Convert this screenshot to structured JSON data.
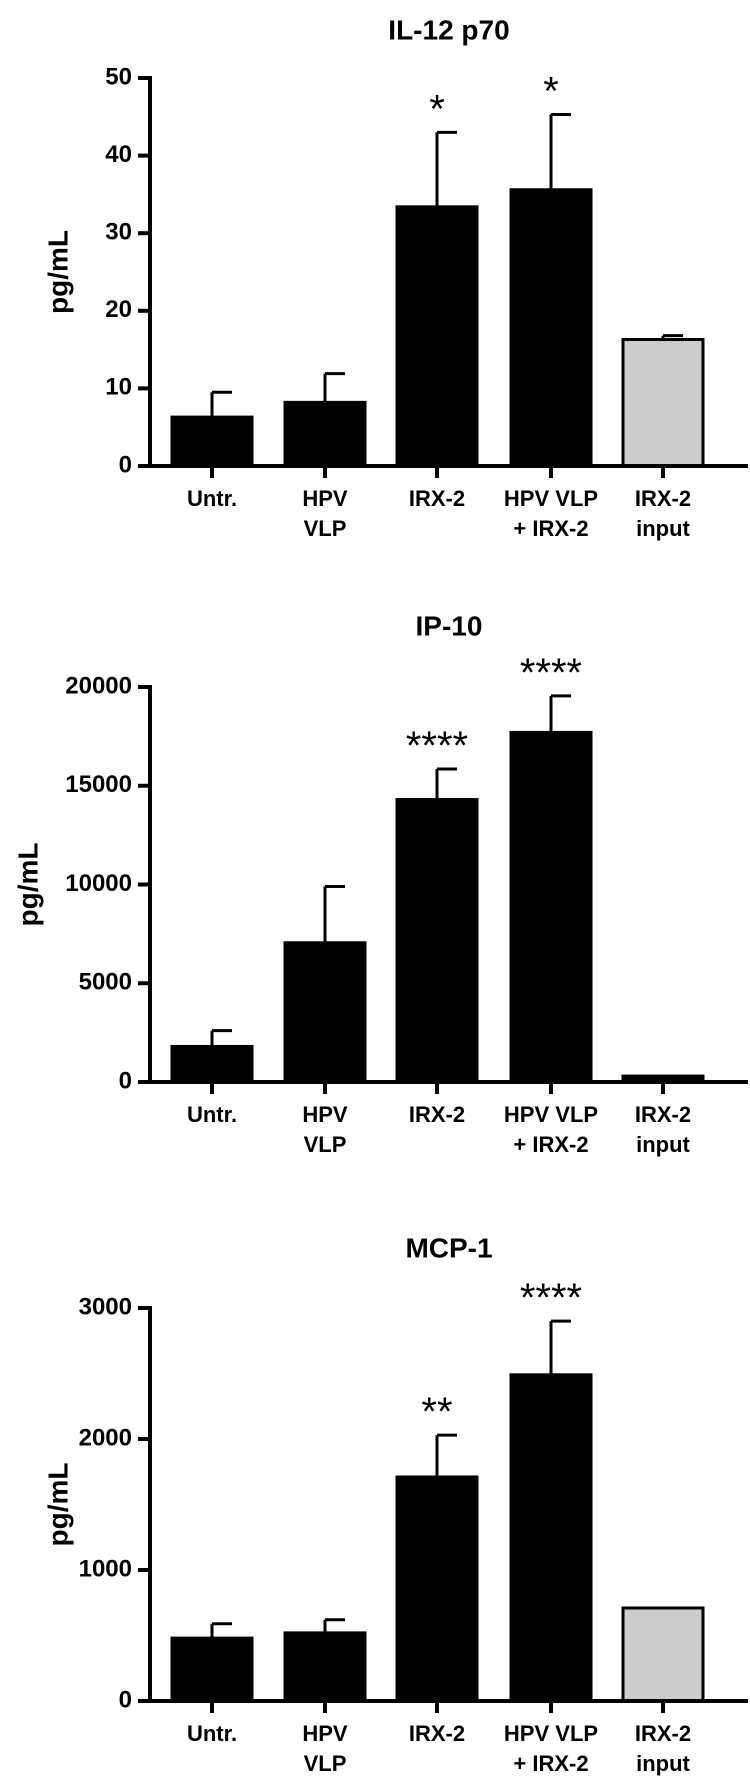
{
  "chart_data": [
    {
      "type": "bar",
      "title": "IL-12 p70",
      "ylabel": "pg/mL",
      "ylim": [
        0,
        50
      ],
      "yticks": [
        0,
        10,
        20,
        30,
        40,
        50
      ],
      "categories": [
        [
          "Untr."
        ],
        [
          "HPV",
          "VLP"
        ],
        [
          "IRX-2"
        ],
        [
          "HPV VLP",
          "+ IRX-2"
        ],
        [
          "IRX-2",
          "input"
        ]
      ],
      "values": [
        6.3,
        8.2,
        33.4,
        35.6,
        16.3
      ],
      "errors": [
        3.2,
        3.7,
        9.6,
        9.7,
        0.5
      ],
      "significance": [
        "",
        "",
        "*",
        "*",
        ""
      ],
      "bar_colors": [
        "#000000",
        "#000000",
        "#000000",
        "#000000",
        "#cccccc"
      ]
    },
    {
      "type": "bar",
      "title": "IP-10",
      "ylabel": "pg/mL",
      "ylim": [
        0,
        20000
      ],
      "yticks": [
        0,
        5000,
        10000,
        15000,
        20000
      ],
      "categories": [
        [
          "Untr."
        ],
        [
          "HPV",
          "VLP"
        ],
        [
          "IRX-2"
        ],
        [
          "HPV VLP",
          "+ IRX-2"
        ],
        [
          "IRX-2",
          "input"
        ]
      ],
      "values": [
        1800,
        7050,
        14300,
        17700,
        300
      ],
      "errors": [
        800,
        2850,
        1550,
        1850,
        0
      ],
      "significance": [
        "",
        "",
        "****",
        "****",
        ""
      ],
      "bar_colors": [
        "#000000",
        "#000000",
        "#000000",
        "#000000",
        "#000000"
      ]
    },
    {
      "type": "bar",
      "title": "MCP-1",
      "ylabel": "pg/mL",
      "ylim": [
        0,
        3000
      ],
      "yticks": [
        0,
        1000,
        2000,
        3000
      ],
      "categories": [
        [
          "Untr."
        ],
        [
          "HPV",
          "VLP"
        ],
        [
          "IRX-2"
        ],
        [
          "HPV VLP",
          "+ IRX-2"
        ],
        [
          "IRX-2",
          "input"
        ]
      ],
      "values": [
        480,
        520,
        1710,
        2490,
        710
      ],
      "errors": [
        110,
        100,
        320,
        410,
        0
      ],
      "significance": [
        "",
        "",
        "**",
        "****",
        ""
      ],
      "bar_colors": [
        "#000000",
        "#000000",
        "#000000",
        "#000000",
        "#cccccc"
      ]
    }
  ]
}
